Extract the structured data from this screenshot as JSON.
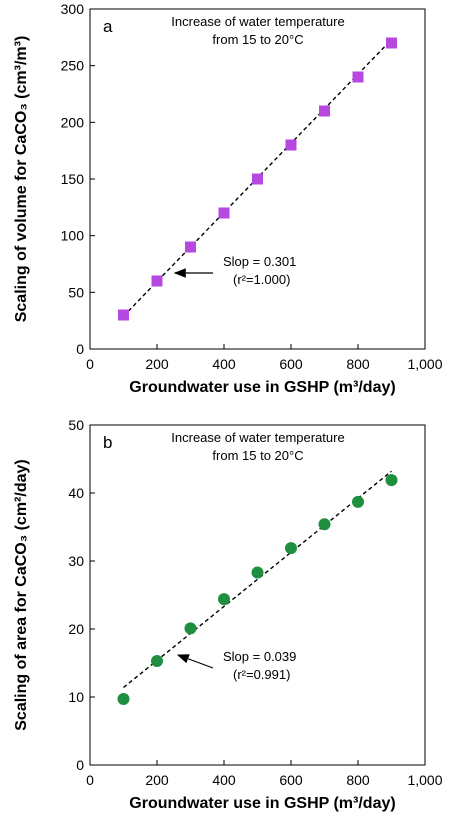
{
  "chart_data": [
    {
      "type": "scatter",
      "panel_label": "a",
      "title_lines": [
        "Increase of water temperature",
        "from 15 to 20°C"
      ],
      "xlabel": "Groundwater use in GSHP (m³/day)",
      "ylabel": "Scaling of volume for CaCO₃ (cm³/m³)",
      "xlim": [
        0,
        1000
      ],
      "ylim": [
        0,
        300
      ],
      "x_ticks": [
        0,
        200,
        400,
        600,
        800,
        1000
      ],
      "x_tick_labels": [
        "0",
        "200",
        "400",
        "600",
        "800",
        "1,000"
      ],
      "y_ticks": [
        0,
        50,
        100,
        150,
        200,
        250,
        300
      ],
      "y_tick_labels": [
        "0",
        "50",
        "100",
        "150",
        "200",
        "250",
        "300"
      ],
      "marker": "square",
      "color": "#b648e0",
      "series": [
        {
          "x": [
            100,
            200,
            300,
            400,
            500,
            600,
            700,
            800,
            900
          ],
          "y": [
            30,
            60,
            90,
            120,
            150,
            180,
            210,
            240,
            270
          ]
        }
      ],
      "fit_line": {
        "slope": 0.301,
        "x_range": [
          100,
          900
        ],
        "y_range": [
          29,
          273
        ]
      },
      "annotation": {
        "line1": "Slop = 0.301",
        "line2": "(r²=1.000)",
        "arrow_to": [
          200,
          60
        ]
      },
      "grid": false
    },
    {
      "type": "scatter",
      "panel_label": "b",
      "title_lines": [
        "Increase of water temperature",
        "from 15 to 20°C"
      ],
      "xlabel": "Groundwater use in GSHP (m³/day)",
      "ylabel": "Scaling of area for CaCO₃ (cm²/day)",
      "xlim": [
        0,
        1000
      ],
      "ylim": [
        0,
        50
      ],
      "x_ticks": [
        0,
        200,
        400,
        600,
        800,
        1000
      ],
      "x_tick_labels": [
        "0",
        "200",
        "400",
        "600",
        "800",
        "1,000"
      ],
      "y_ticks": [
        0,
        10,
        20,
        30,
        40,
        50
      ],
      "y_tick_labels": [
        "0",
        "10",
        "20",
        "30",
        "40",
        "50"
      ],
      "marker": "circle",
      "color": "#1f8f3f",
      "series": [
        {
          "x": [
            100,
            200,
            300,
            400,
            500,
            600,
            700,
            800,
            900
          ],
          "y": [
            9.7,
            15.3,
            20.1,
            24.4,
            28.3,
            31.9,
            35.4,
            38.7,
            41.9
          ]
        }
      ],
      "fit_line": {
        "slope": 0.039,
        "x_range": [
          100,
          900
        ],
        "y_range": [
          11.4,
          43.2
        ]
      },
      "annotation": {
        "line1": "Slop = 0.039",
        "line2": "(r²=0.991)",
        "arrow_to": [
          280,
          16
        ]
      },
      "grid": false
    }
  ]
}
